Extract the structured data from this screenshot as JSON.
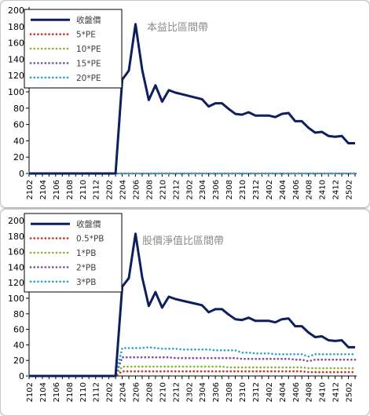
{
  "chart_data": [
    {
      "type": "line",
      "title": "本益比區間帶",
      "xlabel": "",
      "ylabel": "",
      "ylim": [
        0,
        200
      ],
      "yticks": [
        0,
        20,
        40,
        60,
        80,
        100,
        120,
        140,
        160,
        180,
        200
      ],
      "categories": [
        "2102",
        "2103",
        "2104",
        "2105",
        "2106",
        "2107",
        "2108",
        "2109",
        "2110",
        "2111",
        "2112",
        "2201",
        "2202",
        "2203",
        "2204",
        "2205",
        "2206",
        "2207",
        "2208",
        "2209",
        "2210",
        "2211",
        "2212",
        "2301",
        "2302",
        "2303",
        "2304",
        "2305",
        "2306",
        "2307",
        "2308",
        "2309",
        "2310",
        "2311",
        "2312",
        "2401",
        "2402",
        "2403",
        "2404",
        "2405",
        "2406",
        "2407",
        "2408",
        "2409",
        "2410",
        "2411",
        "2412",
        "2501",
        "2502",
        "2503"
      ],
      "xtick_labels": [
        "2102",
        "2104",
        "2106",
        "2108",
        "2110",
        "2112",
        "2202",
        "2204",
        "2206",
        "2208",
        "2210",
        "2212",
        "2302",
        "2304",
        "2306",
        "2308",
        "2310",
        "2312",
        "2402",
        "2404",
        "2406",
        "2408",
        "2410",
        "2412",
        "2502"
      ],
      "series": [
        {
          "name": "收盤價",
          "style": "solid",
          "color": "#0d1f5c",
          "values": [
            0,
            0,
            0,
            0,
            0,
            0,
            0,
            0,
            0,
            0,
            0,
            0,
            0,
            0,
            115,
            126,
            183,
            127,
            90,
            108,
            88,
            102,
            99,
            97,
            95,
            93,
            91,
            82,
            86,
            86,
            79,
            73,
            72,
            75,
            71,
            71,
            71,
            69,
            73,
            74,
            64,
            64,
            56,
            50,
            51,
            46,
            45,
            46,
            37,
            37
          ]
        },
        {
          "name": "5*PE",
          "style": "dotted",
          "color": "#c0392b",
          "values": [
            0,
            0,
            0,
            0,
            0,
            0,
            0,
            0,
            0,
            0,
            0,
            0,
            0,
            0,
            0,
            0,
            0,
            0,
            0,
            0,
            0,
            0,
            0,
            0,
            0,
            0,
            0,
            0,
            0,
            0,
            0,
            0,
            0,
            0,
            0,
            0,
            0,
            0,
            0,
            0,
            0,
            0,
            0,
            0,
            0,
            0,
            0,
            0,
            0,
            0
          ]
        },
        {
          "name": "10*PE",
          "style": "dotted",
          "color": "#8db33a",
          "values": [
            0,
            0,
            0,
            0,
            0,
            0,
            0,
            0,
            0,
            0,
            0,
            0,
            0,
            0,
            0,
            0,
            0,
            0,
            0,
            0,
            0,
            0,
            0,
            0,
            0,
            0,
            0,
            0,
            0,
            0,
            0,
            0,
            0,
            0,
            0,
            0,
            0,
            0,
            0,
            0,
            0,
            0,
            0,
            0,
            0,
            0,
            0,
            0,
            0,
            0
          ]
        },
        {
          "name": "15*PE",
          "style": "dotted",
          "color": "#7b4fa0",
          "values": [
            0,
            0,
            0,
            0,
            0,
            0,
            0,
            0,
            0,
            0,
            0,
            0,
            0,
            0,
            0,
            0,
            0,
            0,
            0,
            0,
            0,
            0,
            0,
            0,
            0,
            0,
            0,
            0,
            0,
            0,
            0,
            0,
            0,
            0,
            0,
            0,
            0,
            0,
            0,
            0,
            0,
            0,
            0,
            0,
            0,
            0,
            0,
            0,
            0,
            0
          ]
        },
        {
          "name": "20*PE",
          "style": "dotted",
          "color": "#2ea3c9",
          "values": [
            0,
            0,
            0,
            0,
            0,
            0,
            0,
            0,
            0,
            0,
            0,
            0,
            0,
            0,
            0,
            0,
            0,
            0,
            0,
            0,
            0,
            0,
            0,
            0,
            0,
            0,
            0,
            0,
            0,
            0,
            0,
            0,
            0,
            0,
            0,
            0,
            0,
            0,
            0,
            0,
            0,
            0,
            0,
            0,
            0,
            0,
            0,
            0,
            0,
            0
          ]
        }
      ],
      "legend": "top-left",
      "grid": false
    },
    {
      "type": "line",
      "title": "股價淨值比區間帶",
      "xlabel": "",
      "ylabel": "",
      "ylim": [
        0,
        200
      ],
      "yticks": [
        0,
        20,
        40,
        60,
        80,
        100,
        120,
        140,
        160,
        180,
        200
      ],
      "categories": [
        "2102",
        "2103",
        "2104",
        "2105",
        "2106",
        "2107",
        "2108",
        "2109",
        "2110",
        "2111",
        "2112",
        "2201",
        "2202",
        "2203",
        "2204",
        "2205",
        "2206",
        "2207",
        "2208",
        "2209",
        "2210",
        "2211",
        "2212",
        "2301",
        "2302",
        "2303",
        "2304",
        "2305",
        "2306",
        "2307",
        "2308",
        "2309",
        "2310",
        "2311",
        "2312",
        "2401",
        "2402",
        "2403",
        "2404",
        "2405",
        "2406",
        "2407",
        "2408",
        "2409",
        "2410",
        "2411",
        "2412",
        "2501",
        "2502",
        "2503"
      ],
      "xtick_labels": [
        "2102",
        "2104",
        "2106",
        "2108",
        "2110",
        "2112",
        "2202",
        "2204",
        "2206",
        "2208",
        "2210",
        "2212",
        "2302",
        "2304",
        "2306",
        "2308",
        "2310",
        "2312",
        "2402",
        "2404",
        "2406",
        "2408",
        "2410",
        "2412",
        "2502"
      ],
      "series": [
        {
          "name": "收盤價",
          "style": "solid",
          "color": "#0d1f5c",
          "values": [
            0,
            0,
            0,
            0,
            0,
            0,
            0,
            0,
            0,
            0,
            0,
            0,
            0,
            0,
            115,
            126,
            183,
            127,
            90,
            108,
            88,
            102,
            99,
            97,
            95,
            93,
            91,
            82,
            86,
            86,
            79,
            73,
            72,
            75,
            71,
            71,
            71,
            69,
            73,
            74,
            64,
            64,
            56,
            50,
            51,
            46,
            45,
            46,
            37,
            37
          ]
        },
        {
          "name": "0.5*PB",
          "style": "dotted",
          "color": "#c0392b",
          "values": [
            0,
            0,
            0,
            0,
            0,
            0,
            0,
            0,
            0,
            0,
            0,
            0,
            0,
            0,
            6,
            6,
            6,
            6,
            6,
            6,
            6,
            6,
            6,
            6,
            6,
            6,
            6,
            6,
            6,
            6,
            6,
            6,
            6,
            6,
            6,
            6,
            6,
            6,
            6,
            6,
            6,
            6,
            5,
            5,
            5,
            5,
            5,
            5,
            5,
            5
          ]
        },
        {
          "name": "1*PB",
          "style": "dotted",
          "color": "#8db33a",
          "values": [
            0,
            0,
            0,
            0,
            0,
            0,
            0,
            0,
            0,
            0,
            0,
            0,
            0,
            0,
            12,
            12,
            12,
            12,
            12,
            12,
            12,
            12,
            12,
            12,
            12,
            12,
            12,
            12,
            12,
            12,
            11,
            11,
            11,
            11,
            11,
            11,
            11,
            11,
            11,
            11,
            11,
            11,
            10,
            10,
            10,
            10,
            10,
            10,
            10,
            10
          ]
        },
        {
          "name": "2*PB",
          "style": "dotted",
          "color": "#7b4fa0",
          "values": [
            0,
            0,
            0,
            0,
            0,
            0,
            0,
            0,
            0,
            0,
            0,
            0,
            0,
            0,
            24,
            24,
            24,
            24,
            24,
            24,
            24,
            24,
            23,
            23,
            23,
            23,
            23,
            23,
            23,
            23,
            23,
            23,
            22,
            22,
            22,
            22,
            22,
            22,
            22,
            22,
            21,
            21,
            19,
            21,
            21,
            21,
            21,
            21,
            21,
            21
          ]
        },
        {
          "name": "3*PB",
          "style": "dotted",
          "color": "#2ea3c9",
          "values": [
            0,
            0,
            0,
            0,
            0,
            0,
            0,
            0,
            0,
            0,
            0,
            0,
            0,
            0,
            36,
            36,
            36,
            36,
            37,
            36,
            35,
            35,
            35,
            34,
            34,
            34,
            34,
            34,
            33,
            33,
            33,
            33,
            30,
            30,
            29,
            29,
            29,
            28,
            28,
            28,
            28,
            28,
            25,
            28,
            28,
            28,
            28,
            28,
            28,
            28
          ]
        }
      ],
      "legend": "top-left",
      "grid": false
    }
  ]
}
